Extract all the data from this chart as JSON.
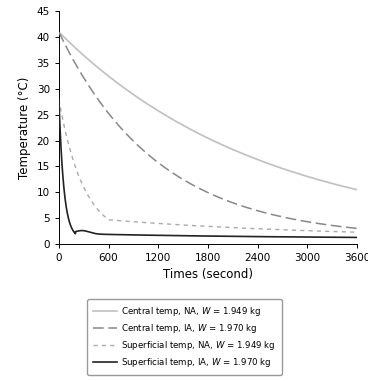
{
  "title": "",
  "xlabel": "Times (second)",
  "ylabel": "Temperature (°C)",
  "xlim": [
    0,
    3600
  ],
  "ylim": [
    0,
    45
  ],
  "xticks": [
    0,
    600,
    1200,
    1800,
    2400,
    3000,
    3600
  ],
  "yticks": [
    0,
    5,
    10,
    15,
    20,
    25,
    30,
    35,
    40,
    45
  ],
  "c1_color": "#c0c0c0",
  "c2_color": "#888888",
  "s1_color": "#aaaaaa",
  "s2_color": "#222222",
  "T_water": 1.0,
  "c1_T0": 41.0,
  "c1_tau": 2500,
  "c2_T0": 41.0,
  "c2_tau": 1200,
  "s1_T0": 28.0,
  "s1_tau1": 300,
  "s1_tau2": 2800,
  "s1_t_break": 600,
  "s2_T0": 28.0,
  "s2_tau_fast": 60,
  "s2_tau_slow": 2500,
  "s2_t_break": 200,
  "legend_entries": [
    "Central temp, NA, $W$ = 1.949 kg",
    "Central temp, IA, $W$ = 1.970 kg",
    "Superficial temp, NA, $W$ = 1.949 kg",
    "Superficial temp, IA, $W$ = 1.970 kg"
  ],
  "bg_color": "#ffffff"
}
